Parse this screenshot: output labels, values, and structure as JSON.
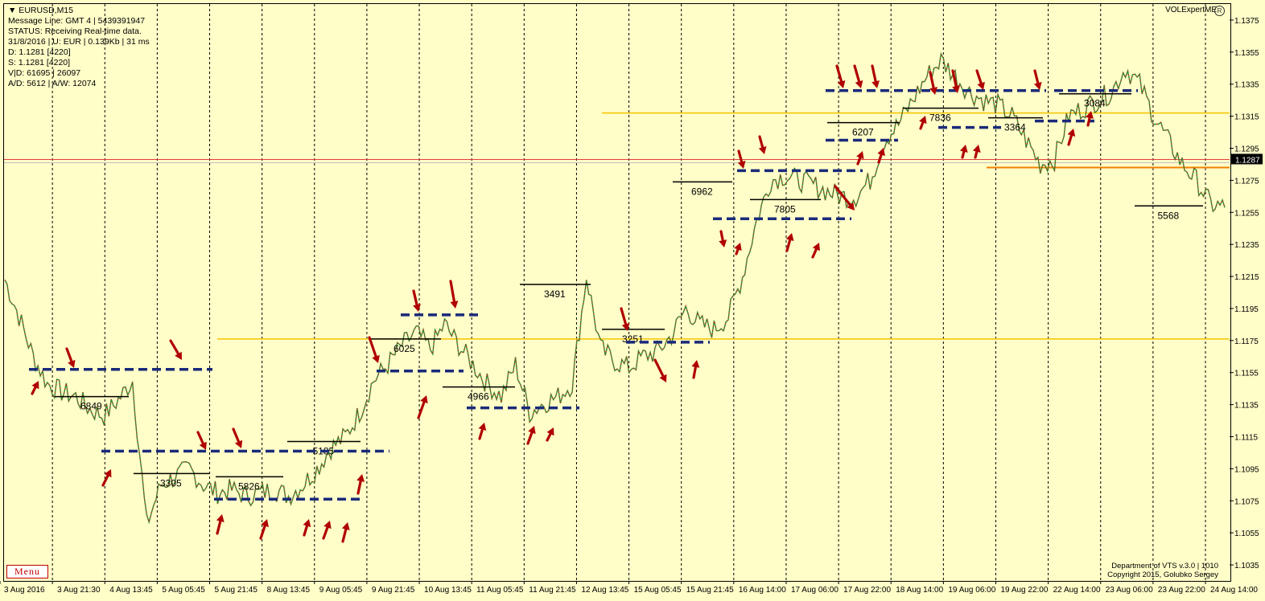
{
  "header": {
    "symbol": "▼ EURUSD,M15",
    "lines": [
      "Message Line: GMT 4 | 5439391947",
      "STATUS:  Receiving Real-time data.",
      "31/8/2016 | U: EUR | 0.139Kb | 31 ms",
      "D: 1.1281  [4220]",
      "S: 1.1281  [4220]",
      "V|D: 61695 | 26097",
      "A/D: 5612 | A/W: 12074"
    ]
  },
  "brand": "VOLExpertME",
  "close_label": "R",
  "menu_label": "Menu",
  "credit": [
    "Department of VTS  v.3.0 | 1010",
    "Copyright 2015, Golubko Sergey"
  ],
  "chart_data": {
    "type": "line",
    "title": "EURUSD,M15",
    "ylim": [
      1.1025,
      1.1385
    ],
    "yticks": [
      1.1375,
      1.1355,
      1.1335,
      1.1315,
      1.1295,
      1.1275,
      1.1255,
      1.1235,
      1.1215,
      1.1195,
      1.1175,
      1.1155,
      1.1135,
      1.1115,
      1.1095,
      1.1075,
      1.1055,
      1.1035
    ],
    "current_price": "1.1287",
    "xlabels": [
      "3 Aug 2016",
      "3 Aug 21:30",
      "4 Aug 13:45",
      "5 Aug 05:45",
      "5 Aug 21:45",
      "8 Aug 13:45",
      "9 Aug 05:45",
      "9 Aug 21:45",
      "10 Aug 13:45",
      "11 Aug 05:45",
      "11 Aug 21:45",
      "12 Aug 13:45",
      "15 Aug 05:45",
      "15 Aug 21:45",
      "16 Aug 14:00",
      "17 Aug 06:00",
      "17 Aug 22:00",
      "18 Aug 14:00",
      "19 Aug 06:00",
      "19 Aug 22:00",
      "22 Aug 14:00",
      "23 Aug 06:00",
      "23 Aug 22:00",
      "24 Aug 14:00"
    ],
    "price_path": [
      [
        0,
        1.1213
      ],
      [
        1,
        1.119
      ],
      [
        2,
        1.1165
      ],
      [
        3,
        1.1148
      ],
      [
        4,
        1.1143
      ],
      [
        5,
        1.114
      ],
      [
        6,
        1.1132
      ],
      [
        7,
        1.1128
      ],
      [
        8,
        1.1138
      ],
      [
        9,
        1.115
      ],
      [
        10,
        1.106
      ],
      [
        11,
        1.1085
      ],
      [
        12,
        1.109
      ],
      [
        13,
        1.1095
      ],
      [
        14,
        1.1085
      ],
      [
        15,
        1.108
      ],
      [
        16,
        1.1082
      ],
      [
        17,
        1.1078
      ],
      [
        18,
        1.108
      ],
      [
        19,
        1.1082
      ],
      [
        20,
        1.1078
      ],
      [
        21,
        1.1085
      ],
      [
        22,
        1.1095
      ],
      [
        23,
        1.1108
      ],
      [
        24,
        1.1115
      ],
      [
        25,
        1.113
      ],
      [
        26,
        1.115
      ],
      [
        27,
        1.116
      ],
      [
        28,
        1.1172
      ],
      [
        29,
        1.118
      ],
      [
        30,
        1.117
      ],
      [
        31,
        1.1185
      ],
      [
        32,
        1.1172
      ],
      [
        33,
        1.116
      ],
      [
        34,
        1.1148
      ],
      [
        35,
        1.114
      ],
      [
        36,
        1.116
      ],
      [
        37,
        1.113
      ],
      [
        38,
        1.1136
      ],
      [
        39,
        1.114
      ],
      [
        40,
        1.1148
      ],
      [
        41,
        1.1215
      ],
      [
        42,
        1.117
      ],
      [
        43,
        1.1162
      ],
      [
        44,
        1.1158
      ],
      [
        45,
        1.1165
      ],
      [
        46,
        1.1168
      ],
      [
        47,
        1.1178
      ],
      [
        48,
        1.1195
      ],
      [
        49,
        1.1185
      ],
      [
        50,
        1.1182
      ],
      [
        51,
        1.119
      ],
      [
        52,
        1.1215
      ],
      [
        53,
        1.125
      ],
      [
        54,
        1.1275
      ],
      [
        55,
        1.1278
      ],
      [
        56,
        1.1275
      ],
      [
        57,
        1.1272
      ],
      [
        58,
        1.1268
      ],
      [
        59,
        1.1265
      ],
      [
        60,
        1.1265
      ],
      [
        61,
        1.1275
      ],
      [
        62,
        1.13
      ],
      [
        63,
        1.131
      ],
      [
        64,
        1.1325
      ],
      [
        65,
        1.134
      ],
      [
        66,
        1.135
      ],
      [
        67,
        1.134
      ],
      [
        68,
        1.133
      ],
      [
        69,
        1.1325
      ],
      [
        70,
        1.1322
      ],
      [
        71,
        1.1315
      ],
      [
        72,
        1.13
      ],
      [
        73,
        1.1285
      ],
      [
        74,
        1.1288
      ],
      [
        75,
        1.1315
      ],
      [
        76,
        1.132
      ],
      [
        77,
        1.1325
      ],
      [
        78,
        1.133
      ],
      [
        79,
        1.1345
      ],
      [
        80,
        1.1335
      ],
      [
        81,
        1.1315
      ],
      [
        82,
        1.13
      ],
      [
        83,
        1.1285
      ],
      [
        84,
        1.1275
      ],
      [
        85,
        1.126
      ],
      [
        86,
        1.1258
      ]
    ],
    "levels_black": [
      {
        "label": "6849",
        "price": 1.114
      },
      {
        "label": "3305",
        "price": 1.1092
      },
      {
        "label": "5826",
        "price": 1.109
      },
      {
        "label": "5185",
        "price": 1.1112
      },
      {
        "label": "6025",
        "price": 1.1176
      },
      {
        "label": "4966",
        "price": 1.1146
      },
      {
        "label": "3491",
        "price": 1.121
      },
      {
        "label": "3251",
        "price": 1.1182
      },
      {
        "label": "6962",
        "price": 1.1274
      },
      {
        "label": "7805",
        "price": 1.1263
      },
      {
        "label": "6207",
        "price": 1.1311
      },
      {
        "label": "7836",
        "price": 1.132
      },
      {
        "label": "3364",
        "price": 1.1314
      },
      {
        "label": "3084",
        "price": 1.1329
      },
      {
        "label": "5568",
        "price": 1.1259
      }
    ],
    "levels_dashed": [
      1.1157,
      1.1106,
      1.1076,
      1.1156,
      1.1191,
      1.1133,
      1.1174,
      1.1251,
      1.1281,
      1.13,
      1.1331,
      1.1308,
      1.1312,
      1.1331
    ],
    "levels_yellow": [
      1.1317,
      1.1176
    ],
    "level_red": 1.1288,
    "level_orange": 1.1284
  }
}
